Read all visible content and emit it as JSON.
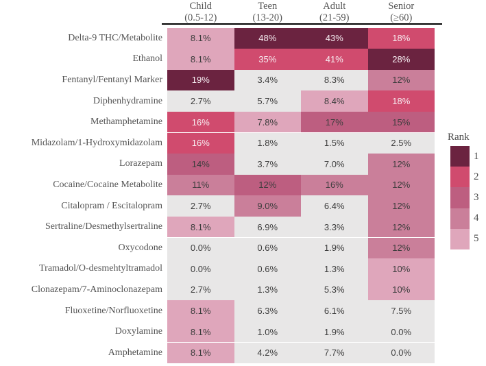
{
  "chart_data": {
    "type": "heatmap",
    "title": "",
    "value_unit": "percent positive",
    "columns": [
      {
        "label": "Child",
        "range": "(0.5-12)"
      },
      {
        "label": "Teen",
        "range": "(13-20)"
      },
      {
        "label": "Adult",
        "range": "(21-59)"
      },
      {
        "label": "Senior",
        "range": "(≥60)"
      }
    ],
    "rows": [
      {
        "label": "Delta-9 THC/Metabolite",
        "values": [
          "8.1%",
          "48%",
          "43%",
          "18%"
        ],
        "ranks": [
          5,
          1,
          1,
          2
        ]
      },
      {
        "label": "Ethanol",
        "values": [
          "8.1%",
          "35%",
          "41%",
          "28%"
        ],
        "ranks": [
          5,
          2,
          2,
          1
        ]
      },
      {
        "label": "Fentanyl/Fentanyl Marker",
        "values": [
          "19%",
          "3.4%",
          "8.3%",
          "12%"
        ],
        "ranks": [
          1,
          0,
          0,
          4
        ]
      },
      {
        "label": "Diphenhydramine",
        "values": [
          "2.7%",
          "5.7%",
          "8.4%",
          "18%"
        ],
        "ranks": [
          0,
          0,
          5,
          2
        ]
      },
      {
        "label": "Methamphetamine",
        "values": [
          "16%",
          "7.8%",
          "17%",
          "15%"
        ],
        "ranks": [
          2,
          5,
          3,
          3
        ]
      },
      {
        "label": "Midazolam/1-Hydroxymidazolam",
        "values": [
          "16%",
          "1.8%",
          "1.5%",
          "2.5%"
        ],
        "ranks": [
          2,
          0,
          0,
          0
        ]
      },
      {
        "label": "Lorazepam",
        "values": [
          "14%",
          "3.7%",
          "7.0%",
          "12%"
        ],
        "ranks": [
          3,
          0,
          0,
          4
        ]
      },
      {
        "label": "Cocaine/Cocaine Metabolite",
        "values": [
          "11%",
          "12%",
          "16%",
          "12%"
        ],
        "ranks": [
          4,
          3,
          4,
          4
        ]
      },
      {
        "label": "Citalopram / Escitalopram",
        "values": [
          "2.7%",
          "9.0%",
          "6.4%",
          "12%"
        ],
        "ranks": [
          0,
          4,
          0,
          4
        ]
      },
      {
        "label": "Sertraline/Desmethylsertraline",
        "values": [
          "8.1%",
          "6.9%",
          "3.3%",
          "12%"
        ],
        "ranks": [
          5,
          0,
          0,
          4
        ]
      },
      {
        "label": "Oxycodone",
        "values": [
          "0.0%",
          "0.6%",
          "1.9%",
          "12%"
        ],
        "ranks": [
          0,
          0,
          0,
          4
        ]
      },
      {
        "label": "Tramadol/O-desmehtyltramadol",
        "values": [
          "0.0%",
          "0.6%",
          "1.3%",
          "10%"
        ],
        "ranks": [
          0,
          0,
          0,
          5
        ]
      },
      {
        "label": "Clonazepam/7-Aminoclonazepam",
        "values": [
          "2.7%",
          "1.3%",
          "5.3%",
          "10%"
        ],
        "ranks": [
          0,
          0,
          0,
          5
        ]
      },
      {
        "label": "Fluoxetine/Norfluoxetine",
        "values": [
          "8.1%",
          "6.3%",
          "6.1%",
          "7.5%"
        ],
        "ranks": [
          5,
          0,
          0,
          0
        ]
      },
      {
        "label": "Doxylamine",
        "values": [
          "8.1%",
          "1.0%",
          "1.9%",
          "0.0%"
        ],
        "ranks": [
          5,
          0,
          0,
          0
        ]
      },
      {
        "label": "Amphetamine",
        "values": [
          "8.1%",
          "4.2%",
          "7.7%",
          "0.0%"
        ],
        "ranks": [
          5,
          0,
          0,
          0
        ]
      }
    ],
    "legend": {
      "title": "Rank",
      "entries": [
        {
          "label": "1",
          "rank": 1
        },
        {
          "label": "2",
          "rank": 2
        },
        {
          "label": "3",
          "rank": 3
        },
        {
          "label": "4",
          "rank": 4
        },
        {
          "label": "5",
          "rank": 5
        }
      ]
    },
    "palette": {
      "1": "#6b2340",
      "2": "#d04b6e",
      "3": "#bd5e80",
      "4": "#ca7f9a",
      "5": "#dfa6bb",
      "0": "#e8e7e7"
    },
    "layout": {
      "grid_on": false,
      "legend_position": "right"
    }
  }
}
